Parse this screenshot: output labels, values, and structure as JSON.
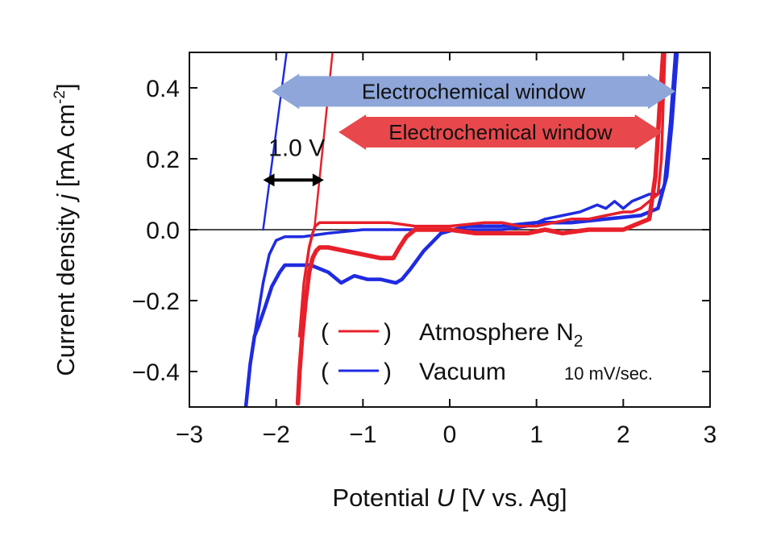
{
  "chart_data": {
    "type": "line",
    "xlabel": {
      "pre": "Potential ",
      "var": "U",
      "post": " [V vs. Ag]"
    },
    "ylabel": {
      "pre": "Current density ",
      "var": "j",
      "post": " [mA cm",
      "sup": "-2",
      "end": "]"
    },
    "xlim": [
      -3,
      3
    ],
    "ylim": [
      -0.5,
      0.5
    ],
    "xticks": [
      -3,
      -2,
      -1,
      0,
      1,
      2,
      3
    ],
    "xtick_labels": [
      "−3",
      "−2",
      "−1",
      "0",
      "1",
      "2",
      "3"
    ],
    "yticks": [
      -0.4,
      -0.2,
      0.0,
      0.2,
      0.4
    ],
    "ytick_labels": [
      "−0.4",
      "−0.2",
      "0.0",
      "0.2",
      "0.4"
    ],
    "grid": false,
    "legend": {
      "placement": "lower-right",
      "entries": [
        {
          "label": "Atmosphere N",
          "sub": "2",
          "color": "#e8202a"
        },
        {
          "label": "Vacuum",
          "sub": "",
          "color": "#1f2be0"
        }
      ],
      "paren_open": "(",
      "paren_close": ")"
    },
    "annotations": {
      "scan_rate": "10 mV/sec.",
      "gap_label": "1.0 V",
      "gap_arrow_x": [
        -2.15,
        -1.45
      ],
      "gap_arrow_y": 0.14,
      "window_blue": {
        "text": "Electrochemical window",
        "x": [
          -2.05,
          2.6
        ],
        "y": 0.39,
        "color": "#8ea6d9"
      },
      "window_red": {
        "text": "Electrochemical window",
        "x": [
          -1.28,
          2.45
        ],
        "y": 0.275,
        "color": "#e8484c"
      }
    },
    "series": [
      {
        "name": "Vacuum",
        "color": "#1f2be0",
        "curves": [
          {
            "x": [
              -2.35,
              -2.3,
              -2.25,
              -2.2,
              -2.13,
              -2.05,
              -1.96,
              -1.9,
              -1.8,
              -1.6,
              -1.4,
              -1.25,
              -1.1,
              -0.95,
              -0.8,
              -0.62,
              -0.55,
              -0.45,
              -0.3,
              -0.1,
              0.2,
              0.6,
              1.0,
              1.4,
              1.8,
              2.2,
              2.4,
              2.5,
              2.56,
              2.62
            ],
            "y": [
              -0.5,
              -0.38,
              -0.3,
              -0.27,
              -0.22,
              -0.16,
              -0.12,
              -0.1,
              -0.1,
              -0.1,
              -0.12,
              -0.15,
              -0.13,
              -0.14,
              -0.14,
              -0.15,
              -0.14,
              -0.11,
              -0.06,
              -0.01,
              0.01,
              0.01,
              0.02,
              0.02,
              0.03,
              0.04,
              0.06,
              0.15,
              0.3,
              0.5
            ],
            "w": 4.5
          },
          {
            "x": [
              -2.25,
              -2.15,
              -2.08,
              -2.0,
              -1.9,
              -1.7,
              -1.4,
              -1.0,
              -0.6,
              -0.2,
              0.2,
              0.6,
              0.9,
              1.1,
              1.3,
              1.5,
              1.6,
              1.7,
              1.8,
              1.9,
              2.0,
              2.1,
              2.2,
              2.3,
              2.4,
              2.47,
              2.54,
              2.6
            ],
            "y": [
              -0.3,
              -0.15,
              -0.07,
              -0.03,
              -0.02,
              -0.02,
              -0.01,
              0.0,
              0.0,
              0.0,
              0.0,
              0.0,
              0.01,
              0.03,
              0.04,
              0.05,
              0.06,
              0.07,
              0.06,
              0.08,
              0.06,
              0.08,
              0.09,
              0.1,
              0.1,
              0.12,
              0.3,
              0.5
            ],
            "w": 3.5
          },
          {
            "x": [
              -2.15,
              -1.88
            ],
            "y": [
              0.0,
              0.5
            ],
            "w": 2.5
          }
        ]
      },
      {
        "name": "Atmosphere N2",
        "color": "#e8202a",
        "curves": [
          {
            "x": [
              -1.75,
              -1.73,
              -1.7,
              -1.66,
              -1.62,
              -1.58,
              -1.54,
              -1.5,
              -1.45,
              -1.4,
              -1.2,
              -1.0,
              -0.8,
              -0.65,
              -0.58,
              -0.5,
              -0.4,
              -0.2,
              0.0,
              0.3,
              0.6,
              0.9,
              1.1,
              1.3,
              1.6,
              2.0,
              2.3,
              2.37,
              2.42,
              2.46
            ],
            "y": [
              -0.49,
              -0.4,
              -0.3,
              -0.2,
              -0.12,
              -0.08,
              -0.06,
              -0.05,
              -0.05,
              -0.05,
              -0.06,
              -0.07,
              -0.08,
              -0.08,
              -0.05,
              -0.02,
              0.0,
              0.0,
              0.0,
              -0.01,
              -0.01,
              -0.01,
              0.0,
              -0.01,
              0.0,
              0.0,
              0.03,
              0.15,
              0.35,
              0.5
            ],
            "w": 5.5
          },
          {
            "x": [
              -1.73,
              -1.68,
              -1.62,
              -1.58,
              -1.55,
              -1.5,
              -1.3,
              -1.0,
              -0.7,
              -0.4,
              0.0,
              0.4,
              0.6,
              0.8,
              1.0,
              1.2,
              1.4,
              1.6,
              1.8,
              2.0,
              2.1,
              2.2,
              2.3,
              2.35,
              2.4,
              2.44,
              2.48
            ],
            "y": [
              -0.3,
              -0.15,
              -0.05,
              -0.01,
              0.01,
              0.02,
              0.02,
              0.02,
              0.02,
              0.01,
              0.01,
              0.02,
              0.02,
              0.01,
              0.01,
              0.02,
              0.03,
              0.03,
              0.04,
              0.05,
              0.05,
              0.06,
              0.08,
              0.09,
              0.1,
              0.2,
              0.5
            ],
            "w": 3.5
          },
          {
            "x": [
              -1.56,
              -1.35
            ],
            "y": [
              0.0,
              0.5
            ],
            "w": 2.5
          }
        ]
      }
    ]
  }
}
